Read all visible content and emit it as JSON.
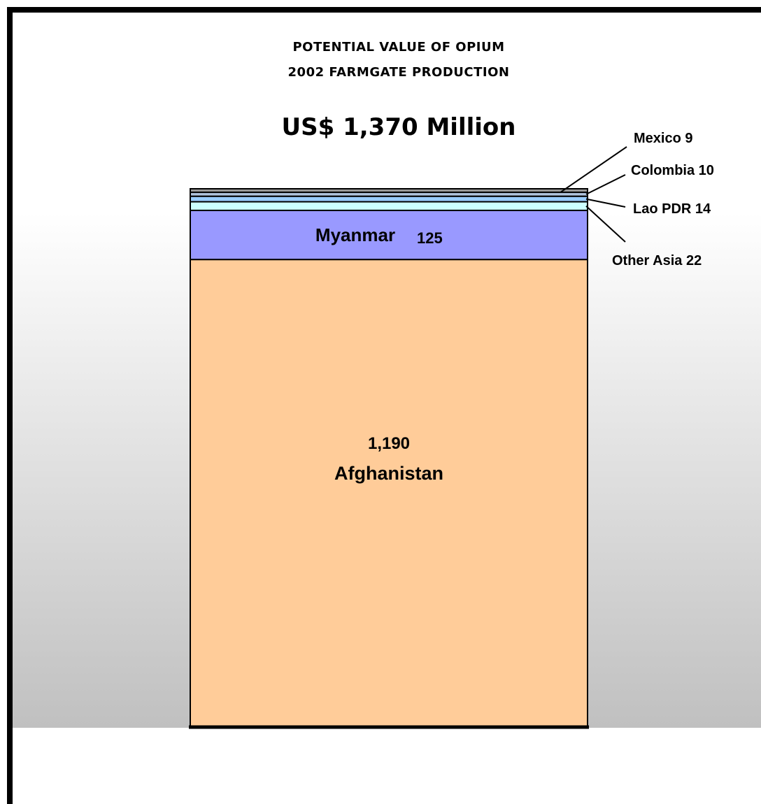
{
  "header": {
    "title_line1": "POTENTIAL VALUE OF OPIUM",
    "title_line2": "2002 FARMGATE PRODUCTION",
    "total_label": "US$ 1,370 Million"
  },
  "chart_data": {
    "type": "bar",
    "stacked": true,
    "title": "POTENTIAL VALUE OF OPIUM 2002 FARMGATE PRODUCTION",
    "subtitle": "US$ 1,370 Million",
    "total": 1370,
    "segments": [
      {
        "name": "Afghanistan",
        "value": 1190,
        "value_label": "1,190",
        "color": "#FFCC99",
        "label_style": "inside-stacked"
      },
      {
        "name": "Myanmar",
        "value": 125,
        "value_label": "125",
        "color": "#9999FF",
        "label_style": "inside-inline"
      },
      {
        "name": "Other Asia",
        "value": 22,
        "value_label": "22",
        "color": "#CCFFFF",
        "label_style": "callout"
      },
      {
        "name": "Lao PDR",
        "value": 14,
        "value_label": "14",
        "color": "#99CCFF",
        "label_style": "callout"
      },
      {
        "name": "Colombia",
        "value": 10,
        "value_label": "10",
        "color": "#B0C4DE",
        "label_style": "callout"
      },
      {
        "name": "Mexico",
        "value": 9,
        "value_label": "9",
        "color": "#999999",
        "label_style": "callout"
      }
    ],
    "callout_labels": [
      {
        "name": "Mexico",
        "text": "Mexico 9"
      },
      {
        "name": "Colombia",
        "text": "Colombia 10"
      },
      {
        "name": "Lao PDR",
        "text": "Lao PDR 14"
      },
      {
        "name": "Other Asia",
        "text": "Other Asia 22"
      }
    ],
    "background": {
      "gradient_top": "#FFFFFF",
      "gradient_bottom": "#C0C0C0"
    },
    "legend": "none",
    "grid": false
  }
}
